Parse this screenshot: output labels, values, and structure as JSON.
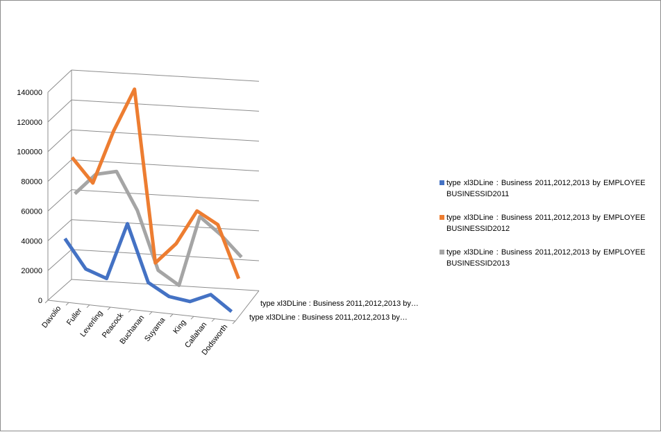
{
  "chart_data": {
    "type": "line",
    "title": "",
    "xlabel": "",
    "ylabel": "",
    "categories": [
      "Davolio",
      "Fuller",
      "Leverling",
      "Peacock",
      "Buchanan",
      "Suyama",
      "King",
      "Callahan",
      "Dodsworth"
    ],
    "yticks": [
      "0",
      "20000",
      "40000",
      "60000",
      "80000",
      "100000",
      "120000",
      "140000"
    ],
    "ylim": [
      0,
      140000
    ],
    "depth_labels": [
      "type xl3DLine : Business 2011,2012,2013 by…",
      "type xl3DLine : Business 2011,2012,2013 by…"
    ],
    "grid": true,
    "legend_position": "right",
    "series": [
      {
        "name": "type xl3DLine : Business 2011,2012,2013 by EMPLOYEE BUSINESSID2011",
        "color": "#4472C4",
        "values": [
          38000,
          19000,
          14000,
          52000,
          14000,
          6000,
          4000,
          10000,
          0
        ]
      },
      {
        "name": "type xl3DLine : Business 2011,2012,2013 by EMPLOYEE BUSINESSID2012",
        "color": "#ED7D31",
        "values": [
          88000,
          72000,
          108000,
          137000,
          22000,
          36000,
          59000,
          51000,
          16000
        ]
      },
      {
        "name": "type xl3DLine : Business 2011,2012,2013 by EMPLOYEE BUSINESSID2013",
        "color": "#A5A5A5",
        "values": [
          62000,
          76000,
          79000,
          54000,
          15000,
          6000,
          53000,
          42000,
          28000
        ]
      }
    ]
  }
}
